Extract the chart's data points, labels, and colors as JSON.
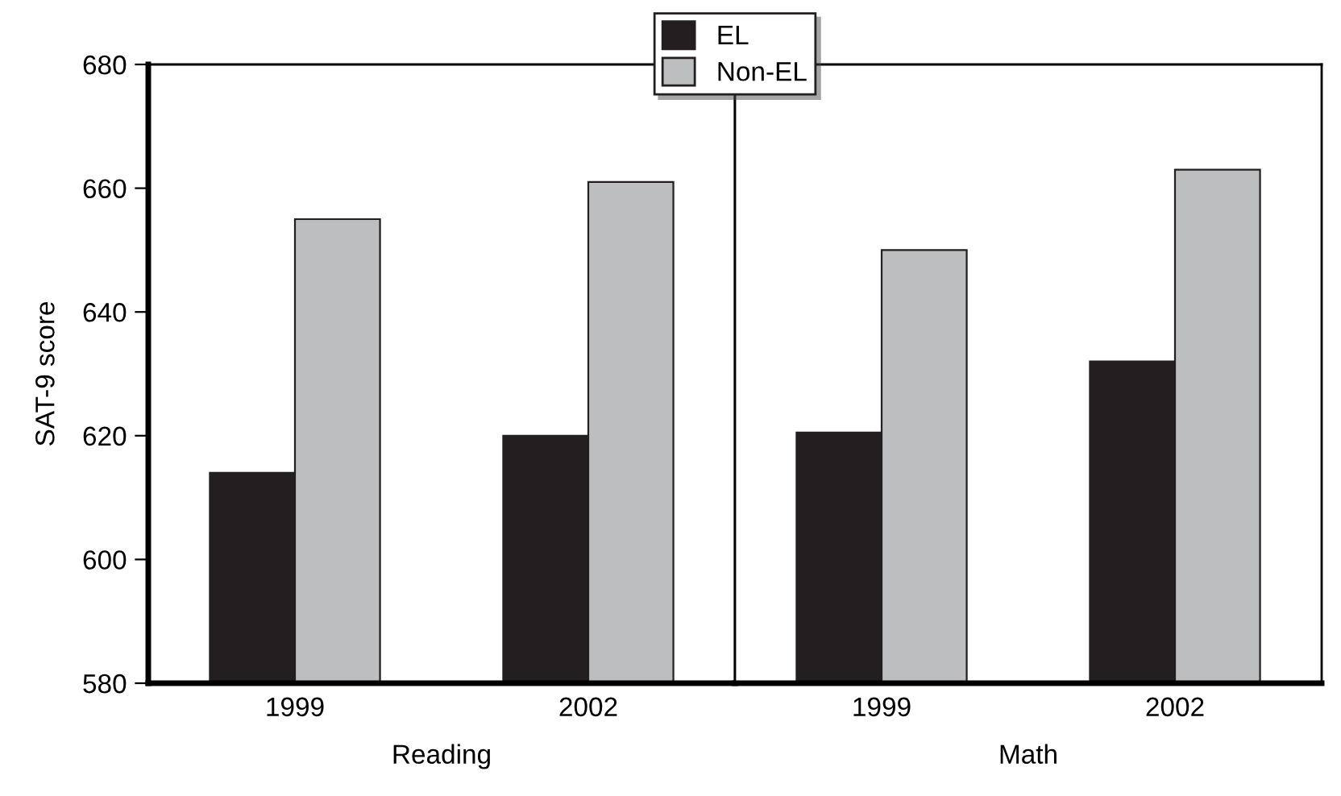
{
  "chart_data": [
    {
      "type": "bar",
      "categories": [
        "1999",
        "2002"
      ],
      "xlabel": "Reading",
      "ylabel": "SAT-9 score",
      "ylim": [
        580,
        680
      ],
      "yticks": [
        580,
        600,
        620,
        640,
        660,
        680
      ],
      "legend": "top",
      "series": [
        {
          "name": "EL",
          "color": "#231f20",
          "values": [
            614,
            620
          ]
        },
        {
          "name": "Non-EL",
          "color": "#bcbec0",
          "values": [
            655,
            661
          ]
        }
      ]
    },
    {
      "type": "bar",
      "categories": [
        "1999",
        "2002"
      ],
      "xlabel": "Math",
      "ylim": [
        580,
        680
      ],
      "tick_labels": "x",
      "series": [
        {
          "color": "#231f20",
          "values": [
            620.5,
            632
          ]
        },
        {
          "color": "#bcbec0",
          "values": [
            650,
            663
          ]
        }
      ]
    }
  ]
}
